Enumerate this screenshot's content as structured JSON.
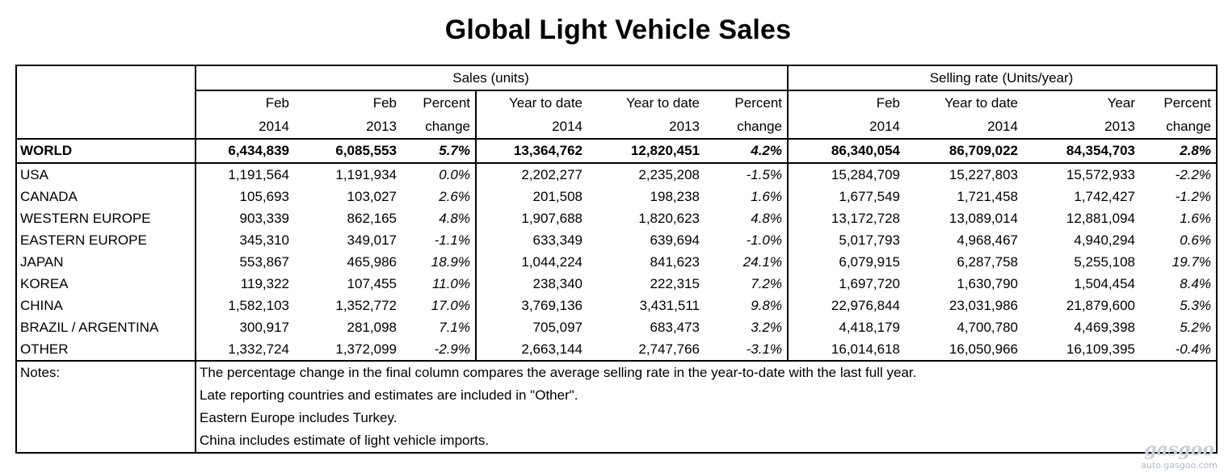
{
  "title": "Global Light Vehicle Sales",
  "headers": {
    "sales_group": "Sales (units)",
    "rate_group": "Selling rate (Units/year)",
    "columns": [
      {
        "top": "Feb",
        "bottom": "2014"
      },
      {
        "top": "Feb",
        "bottom": "2013"
      },
      {
        "top": "Percent",
        "bottom": "change"
      },
      {
        "top": "Year to date",
        "bottom": "2014"
      },
      {
        "top": "Year to date",
        "bottom": "2013"
      },
      {
        "top": "Percent",
        "bottom": "change"
      },
      {
        "top": "Feb",
        "bottom": "2014"
      },
      {
        "top": "Year to date",
        "bottom": "2014"
      },
      {
        "top": "Year",
        "bottom": "2013"
      },
      {
        "top": "Percent",
        "bottom": "change"
      }
    ]
  },
  "world": [
    "WORLD",
    "6,434,839",
    "6,085,553",
    "5.7%",
    "13,364,762",
    "12,820,451",
    "4.2%",
    "86,340,054",
    "86,709,022",
    "84,354,703",
    "2.8%"
  ],
  "rows": [
    [
      "USA",
      "1,191,564",
      "1,191,934",
      "0.0%",
      "2,202,277",
      "2,235,208",
      "-1.5%",
      "15,284,709",
      "15,227,803",
      "15,572,933",
      "-2.2%"
    ],
    [
      "CANADA",
      "105,693",
      "103,027",
      "2.6%",
      "201,508",
      "198,238",
      "1.6%",
      "1,677,549",
      "1,721,458",
      "1,742,427",
      "-1.2%"
    ],
    [
      "WESTERN EUROPE",
      "903,339",
      "862,165",
      "4.8%",
      "1,907,688",
      "1,820,623",
      "4.8%",
      "13,172,728",
      "13,089,014",
      "12,881,094",
      "1.6%"
    ],
    [
      "EASTERN EUROPE",
      "345,310",
      "349,017",
      "-1.1%",
      "633,349",
      "639,694",
      "-1.0%",
      "5,017,793",
      "4,968,467",
      "4,940,294",
      "0.6%"
    ],
    [
      "JAPAN",
      "553,867",
      "465,986",
      "18.9%",
      "1,044,224",
      "841,623",
      "24.1%",
      "6,079,915",
      "6,287,758",
      "5,255,108",
      "19.7%"
    ],
    [
      "KOREA",
      "119,322",
      "107,455",
      "11.0%",
      "238,340",
      "222,315",
      "7.2%",
      "1,697,720",
      "1,630,790",
      "1,504,454",
      "8.4%"
    ],
    [
      "CHINA",
      "1,582,103",
      "1,352,772",
      "17.0%",
      "3,769,136",
      "3,431,511",
      "9.8%",
      "22,976,844",
      "23,031,986",
      "21,879,600",
      "5.3%"
    ],
    [
      "BRAZIL / ARGENTINA",
      "300,917",
      "281,098",
      "7.1%",
      "705,097",
      "683,473",
      "3.2%",
      "4,418,179",
      "4,700,780",
      "4,469,398",
      "5.2%"
    ],
    [
      "OTHER",
      "1,332,724",
      "1,372,099",
      "-2.9%",
      "2,663,144",
      "2,747,766",
      "-3.1%",
      "16,014,618",
      "16,050,966",
      "16,109,395",
      "-0.4%"
    ]
  ],
  "notes": {
    "label": "Notes:",
    "lines": [
      "The percentage change in the final column compares the average selling rate in the year-to-date with the last full year.",
      "Late reporting countries and estimates are included in \"Other\".",
      "Eastern Europe includes Turkey.",
      "China includes estimate of light vehicle imports."
    ]
  },
  "watermark": {
    "logo": "gasgoo",
    "url": "auto.gasgoo.com"
  }
}
